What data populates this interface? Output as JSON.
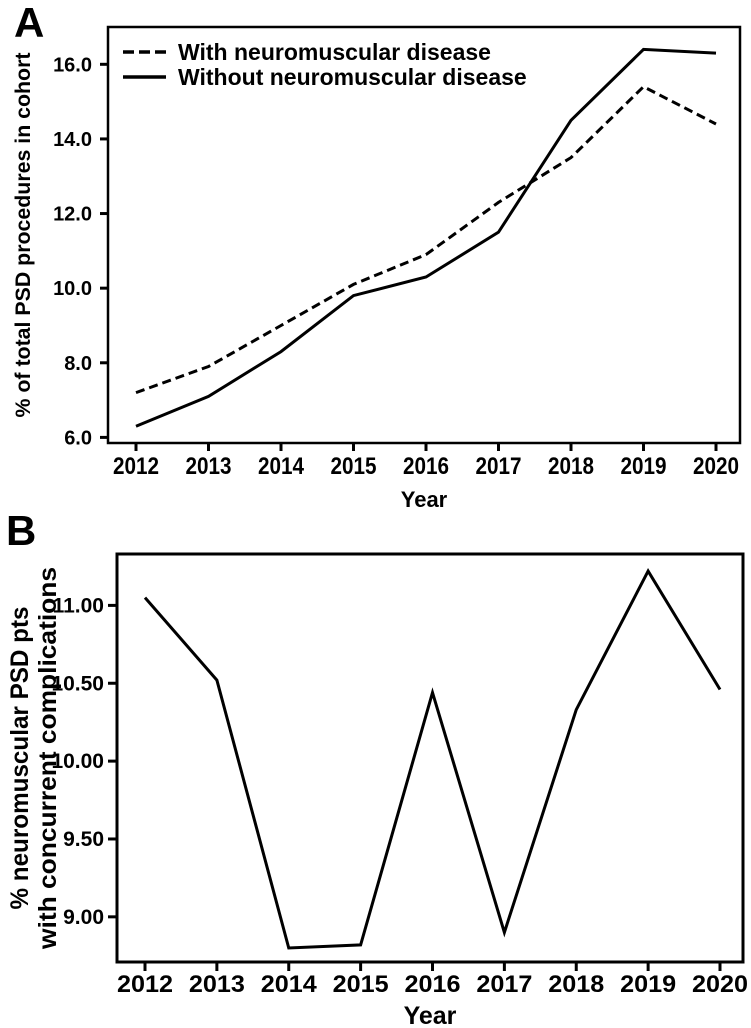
{
  "figure": {
    "background_color": "#ffffff",
    "ink_color": "#000000"
  },
  "chart_data": [
    {
      "panel_label": "A",
      "type": "line",
      "title": "",
      "categories": [
        "2012",
        "2013",
        "2014",
        "2015",
        "2016",
        "2017",
        "2018",
        "2019",
        "2020"
      ],
      "series": [
        {
          "name": "With neuromuscular disease",
          "line_style": "dashed",
          "values": [
            7.2,
            7.9,
            9.0,
            10.1,
            10.9,
            12.3,
            13.5,
            15.4,
            14.4
          ]
        },
        {
          "name": "Without neuromuscular disease",
          "line_style": "solid",
          "values": [
            6.3,
            7.1,
            8.3,
            9.8,
            10.3,
            11.5,
            14.5,
            16.4,
            16.3
          ]
        }
      ],
      "xlabel": "Year",
      "ylabel": "% of total PSD procedures in cohort",
      "ylabel_lines": [
        "% of total PSD procedures in cohort"
      ],
      "y_ticks": [
        6.0,
        8.0,
        10.0,
        12.0,
        14.0,
        16.0
      ],
      "y_tick_decimals": 1,
      "ylim": [
        5.85,
        17.0
      ],
      "grid": false,
      "legend_position": "top-left",
      "line_color": "#000000"
    },
    {
      "panel_label": "B",
      "type": "line",
      "title": "",
      "categories": [
        "2012",
        "2013",
        "2014",
        "2015",
        "2016",
        "2017",
        "2018",
        "2019",
        "2020"
      ],
      "series": [
        {
          "name": "% neuromuscular PSD pts with concurrent complications",
          "line_style": "solid",
          "values": [
            11.05,
            10.52,
            8.8,
            8.82,
            10.44,
            8.9,
            10.33,
            11.22,
            10.46
          ]
        }
      ],
      "xlabel": "Year",
      "ylabel": "% neuromuscular PSD pts with concurrent complications",
      "ylabel_lines": [
        "% neuromuscular PSD pts",
        "with concurrent complications"
      ],
      "y_ticks": [
        9.0,
        9.5,
        10.0,
        10.5,
        11.0
      ],
      "y_tick_decimals": 2,
      "ylim": [
        8.71,
        11.33
      ],
      "grid": false,
      "legend_position": "none",
      "line_color": "#000000"
    }
  ]
}
